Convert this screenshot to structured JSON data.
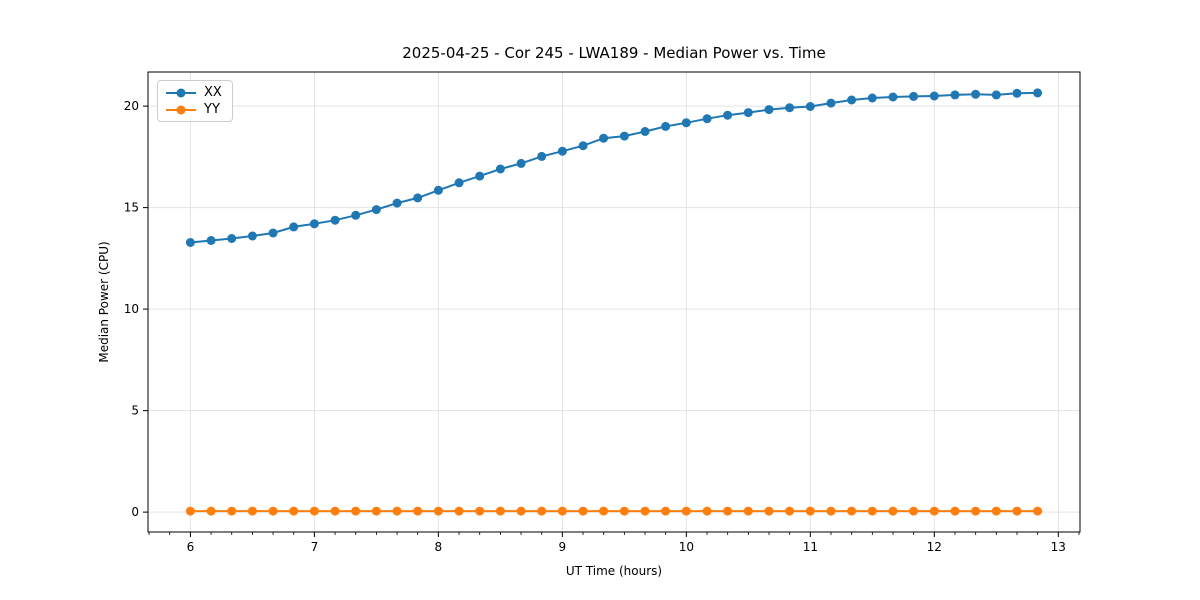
{
  "chart_data": {
    "type": "line",
    "title": "2025-04-25 - Cor 245 - LWA189 - Median Power vs. Time",
    "xlabel": "UT Time (hours)",
    "ylabel": "Median Power (CPU)",
    "xlim": [
      5.658,
      13.175
    ],
    "ylim": [
      -0.98,
      21.68
    ],
    "x_major_ticks": [
      6,
      7,
      8,
      9,
      10,
      11,
      12,
      13
    ],
    "x_minor_tick_step": 0.16667,
    "y_major_ticks": [
      0,
      5,
      10,
      15,
      20
    ],
    "grid": true,
    "grid_color": "#e3e3e3",
    "legend_position": "upper-left",
    "x": [
      6.0,
      6.167,
      6.333,
      6.5,
      6.667,
      6.833,
      7.0,
      7.167,
      7.333,
      7.5,
      7.667,
      7.833,
      8.0,
      8.167,
      8.333,
      8.5,
      8.667,
      8.833,
      9.0,
      9.167,
      9.333,
      9.5,
      9.667,
      9.833,
      10.0,
      10.167,
      10.333,
      10.5,
      10.667,
      10.833,
      11.0,
      11.167,
      11.333,
      11.5,
      11.667,
      11.833,
      12.0,
      12.167,
      12.333,
      12.5,
      12.667,
      12.833
    ],
    "series": [
      {
        "name": "XX",
        "color": "#1f77b4",
        "values": [
          13.28,
          13.38,
          13.48,
          13.6,
          13.75,
          14.05,
          14.2,
          14.38,
          14.62,
          14.9,
          15.22,
          15.48,
          15.85,
          16.22,
          16.55,
          16.9,
          17.18,
          17.52,
          17.78,
          18.05,
          18.42,
          18.52,
          18.75,
          19.0,
          19.18,
          19.38,
          19.55,
          19.68,
          19.83,
          19.92,
          19.98,
          20.15,
          20.3,
          20.4,
          20.45,
          20.48,
          20.5,
          20.55,
          20.58,
          20.55,
          20.63,
          20.65
        ]
      },
      {
        "name": "YY",
        "color": "#ff7f0e",
        "values": [
          0.05,
          0.05,
          0.05,
          0.05,
          0.05,
          0.05,
          0.05,
          0.05,
          0.05,
          0.05,
          0.05,
          0.05,
          0.05,
          0.05,
          0.05,
          0.05,
          0.05,
          0.05,
          0.05,
          0.05,
          0.05,
          0.05,
          0.05,
          0.05,
          0.05,
          0.05,
          0.05,
          0.05,
          0.05,
          0.05,
          0.05,
          0.05,
          0.05,
          0.05,
          0.05,
          0.05,
          0.05,
          0.05,
          0.05,
          0.05,
          0.05,
          0.05
        ]
      }
    ]
  }
}
